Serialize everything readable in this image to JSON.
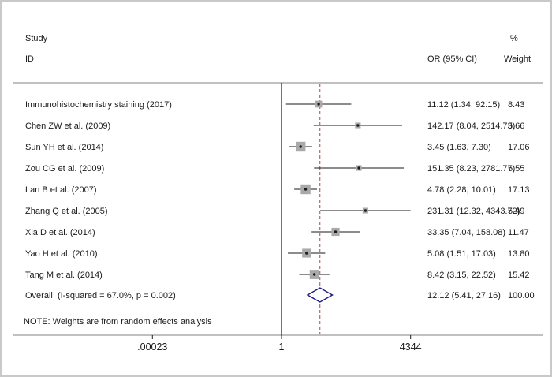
{
  "figure": {
    "header": {
      "study": "Study",
      "id": "ID",
      "or_ci": "OR (95% CI)",
      "percent": "%",
      "weight": "Weight"
    },
    "note": "NOTE: Weights are from random effects analysis"
  },
  "chart_data": {
    "type": "forest",
    "scale": "log10",
    "xlim": [
      0.00023,
      4344
    ],
    "grid": false,
    "legend": false,
    "null_line_value": 1,
    "overall_line_value": 12.12,
    "x_ticks": [
      {
        "label": ".00023",
        "value": 0.00023
      },
      {
        "label": "1",
        "value": 1
      },
      {
        "label": "4344",
        "value": 4344
      }
    ],
    "studies": [
      {
        "label": "Immunohistochemistry staining (2017)",
        "or": 11.12,
        "ci_low": 1.34,
        "ci_high": 92.15,
        "or_text": "11.12 (1.34, 92.15)",
        "weight": 8.43,
        "weight_text": "8.43"
      },
      {
        "label": "Chen ZW et al. (2009)",
        "or": 142.17,
        "ci_low": 8.04,
        "ci_high": 2514.73,
        "or_text": "142.17 (8.04, 2514.73)",
        "weight": 5.66,
        "weight_text": "5.66"
      },
      {
        "label": "Sun YH et al. (2014)",
        "or": 3.45,
        "ci_low": 1.63,
        "ci_high": 7.3,
        "or_text": "3.45 (1.63, 7.30)",
        "weight": 17.06,
        "weight_text": "17.06"
      },
      {
        "label": "Zou CG et al. (2009)",
        "or": 151.35,
        "ci_low": 8.23,
        "ci_high": 2781.77,
        "or_text": "151.35 (8.23, 2781.77)",
        "weight": 5.55,
        "weight_text": "5.55"
      },
      {
        "label": "Lan B et al. (2007)",
        "or": 4.78,
        "ci_low": 2.28,
        "ci_high": 10.01,
        "or_text": "4.78 (2.28, 10.01)",
        "weight": 17.13,
        "weight_text": "17.13"
      },
      {
        "label": "Zhang Q et al. (2005)",
        "or": 231.31,
        "ci_low": 12.32,
        "ci_high": 4343.72,
        "or_text": "231.31 (12.32, 4343.72)",
        "weight": 5.49,
        "weight_text": "5.49"
      },
      {
        "label": "Xia D et al. (2014)",
        "or": 33.35,
        "ci_low": 7.04,
        "ci_high": 158.08,
        "or_text": "33.35 (7.04, 158.08)",
        "weight": 11.47,
        "weight_text": "11.47"
      },
      {
        "label": "Yao H et al. (2010)",
        "or": 5.08,
        "ci_low": 1.51,
        "ci_high": 17.03,
        "or_text": "5.08 (1.51, 17.03)",
        "weight": 13.8,
        "weight_text": "13.80"
      },
      {
        "label": "Tang M et al. (2014)",
        "or": 8.42,
        "ci_low": 3.15,
        "ci_high": 22.52,
        "or_text": "8.42 (3.15, 22.52)",
        "weight": 15.42,
        "weight_text": "15.42"
      }
    ],
    "overall": {
      "label": "Overall  (I-squared = 67.0%, p = 0.002)",
      "or": 12.12,
      "ci_low": 5.41,
      "ci_high": 27.16,
      "or_text": "12.12 (5.41, 27.16)",
      "weight_text": "100.00"
    },
    "colors": {
      "marker_fill": "#a9a9a9",
      "marker_dot": "#1a1a1a",
      "ci_line": "#1a1a1a",
      "diamond_stroke": "#1b1b7e",
      "overall_dashed": "#a34a4a",
      "frame_line": "#808080",
      "null_line": "#1a1a1a",
      "text": "#1a1a1a"
    }
  }
}
